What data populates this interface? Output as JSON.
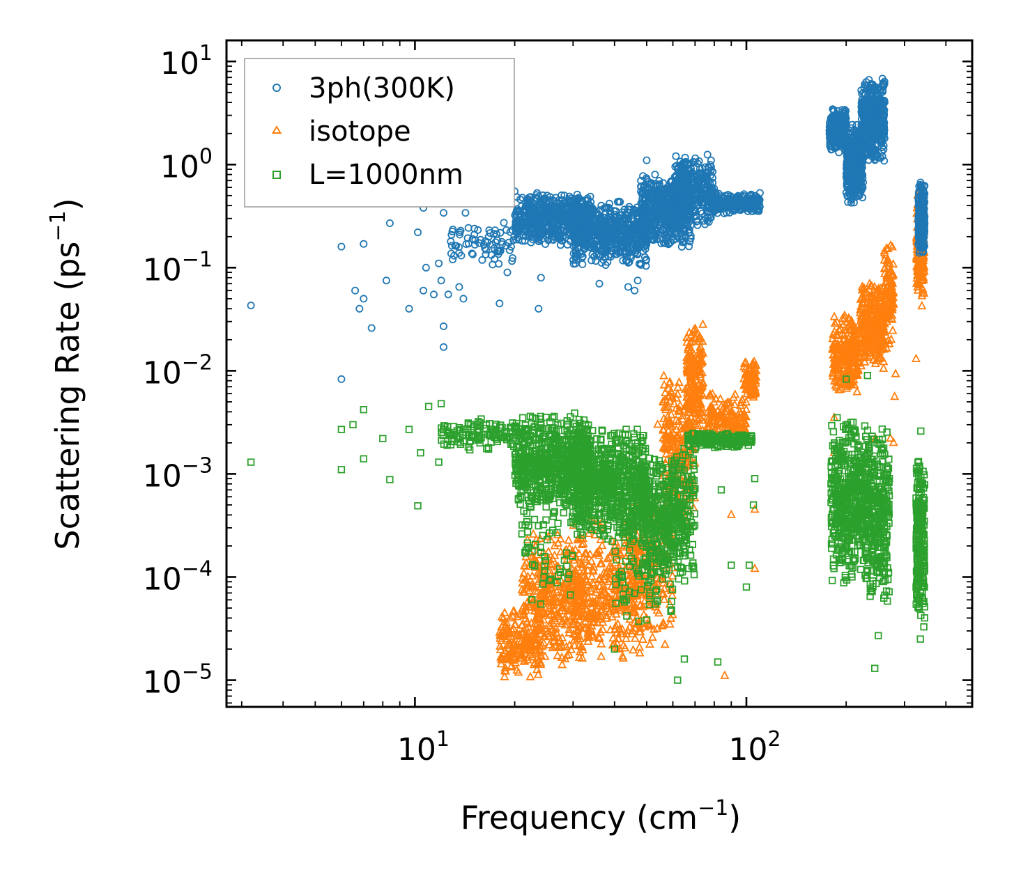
{
  "chart_data": {
    "type": "scatter",
    "title": "",
    "xlabel": "Frequency (cm",
    "xlabel_sup": "−1",
    "xlabel_suffix": ")",
    "ylabel": "Scattering Rate (ps",
    "ylabel_sup": "−1",
    "ylabel_suffix": ")",
    "xscale": "log",
    "yscale": "log",
    "xlim": [
      2.7,
      480
    ],
    "ylim": [
      5.5e-06,
      16
    ],
    "x_ticks": [
      {
        "value": 10,
        "base": "10",
        "exp": "1"
      },
      {
        "value": 100,
        "base": "10",
        "exp": "2"
      }
    ],
    "y_ticks": [
      {
        "value": 10,
        "base": "10",
        "exp": "1"
      },
      {
        "value": 1,
        "base": "10",
        "exp": "0"
      },
      {
        "value": 0.1,
        "base": "10",
        "exp": "−1"
      },
      {
        "value": 0.01,
        "base": "10",
        "exp": "−2"
      },
      {
        "value": 0.001,
        "base": "10",
        "exp": "−3"
      },
      {
        "value": 0.0001,
        "base": "10",
        "exp": "−4"
      },
      {
        "value": 1e-05,
        "base": "10",
        "exp": "−5"
      }
    ],
    "legend_position": "top-left",
    "series": [
      {
        "name": "3ph(300K)",
        "color": "#1f77b4",
        "marker": "circle",
        "points": [
          [
            3.2,
            0.043
          ],
          [
            6,
            0.16
          ],
          [
            6,
            0.0083
          ],
          [
            6.6,
            0.06
          ],
          [
            6.8,
            0.04
          ],
          [
            7,
            0.17
          ],
          [
            7,
            0.05
          ],
          [
            7.4,
            0.026
          ],
          [
            8.2,
            0.075
          ],
          [
            8.4,
            0.27
          ],
          [
            9.6,
            0.04
          ],
          [
            10.2,
            0.22
          ],
          [
            10.6,
            0.38
          ],
          [
            10.6,
            0.06
          ],
          [
            10.8,
            0.1
          ],
          [
            11.4,
            0.055
          ],
          [
            11.8,
            0.11
          ],
          [
            12,
            0.075
          ],
          [
            12.2,
            0.027
          ],
          [
            12.2,
            0.017
          ],
          [
            12.2,
            0.34
          ],
          [
            12.6,
            0.055
          ],
          [
            13,
            0.12
          ],
          [
            13.6,
            0.065
          ],
          [
            14,
            0.05
          ],
          [
            14.2,
            0.34
          ],
          [
            15,
            0.44
          ],
          [
            16.4,
            0.47
          ],
          [
            18,
            0.045
          ],
          [
            19,
            0.09
          ],
          [
            20,
            0.55
          ],
          [
            23.6,
            0.04
          ],
          [
            24,
            0.08
          ],
          [
            27,
            0.2
          ],
          [
            30,
            0.42
          ],
          [
            36,
            0.07
          ],
          [
            44,
            0.065
          ],
          [
            46,
            0.06
          ],
          [
            47,
            0.075
          ],
          [
            48,
            0.11
          ],
          [
            50,
            1.1
          ],
          [
            53,
            0.8
          ],
          [
            56,
            0.55
          ],
          [
            60,
            0.6
          ]
        ],
        "bands": [
          {
            "x": [
              12.8,
              20
            ],
            "y": [
              0.1,
              0.3
            ],
            "count": 70
          },
          {
            "x": [
              20,
              34
            ],
            "y": [
              0.16,
              0.55
            ],
            "count": 620
          },
          {
            "x": [
              30,
              50
            ],
            "y": [
              0.1,
              0.45
            ],
            "count": 600
          },
          {
            "x": [
              48,
              68
            ],
            "y": [
              0.15,
              0.9
            ],
            "count": 500
          },
          {
            "x": [
              60,
              80
            ],
            "y": [
              0.25,
              1.3
            ],
            "count": 320
          },
          {
            "x": [
              78,
              110
            ],
            "y": [
              0.32,
              0.55
            ],
            "count": 200
          },
          {
            "x": [
              178,
              200
            ],
            "y": [
              1.3,
              3.6
            ],
            "count": 260
          },
          {
            "x": [
              200,
              225
            ],
            "y": [
              0.4,
              2.6
            ],
            "count": 360
          },
          {
            "x": [
              222,
              262
            ],
            "y": [
              1.0,
              7.5
            ],
            "count": 470
          },
          {
            "x": [
              330,
              345
            ],
            "y": [
              0.12,
              0.75
            ],
            "count": 200
          }
        ]
      },
      {
        "name": "isotope",
        "color": "#ff7f0e",
        "marker": "triangle",
        "points": [
          [
            54,
            0.003
          ],
          [
            60,
            0.0025
          ],
          [
            62,
            0.0023
          ],
          [
            86,
            1.1e-05
          ],
          [
            90,
            0.0004
          ],
          [
            106,
            0.00045
          ],
          [
            106,
            0.00012
          ],
          [
            184,
            0.0035
          ],
          [
            184,
            0.0016
          ],
          [
            190,
            0.0065
          ],
          [
            245,
            0.0022
          ],
          [
            272,
            0.0022
          ],
          [
            278,
            0.002
          ],
          [
            280,
            0.0056
          ],
          [
            282,
            0.0093
          ],
          [
            325,
            0.013
          ],
          [
            330,
            0.07
          ]
        ],
        "bands": [
          {
            "x": [
              18,
              24
            ],
            "y": [
              1e-05,
              5e-05
            ],
            "count": 170
          },
          {
            "x": [
              21,
              32
            ],
            "y": [
              1.2e-05,
              0.0003
            ],
            "count": 360
          },
          {
            "x": [
              30,
              48
            ],
            "y": [
              1.2e-05,
              0.0004
            ],
            "count": 380
          },
          {
            "x": [
              45,
              60
            ],
            "y": [
              2e-05,
              0.0008
            ],
            "count": 200
          },
          {
            "x": [
              56,
              70
            ],
            "y": [
              0.0003,
              0.01
            ],
            "count": 240
          },
          {
            "x": [
              66,
              74
            ],
            "y": [
              0.002,
              0.032
            ],
            "count": 180
          },
          {
            "x": [
              76,
              100
            ],
            "y": [
              0.002,
              0.006
            ],
            "count": 150
          },
          {
            "x": [
              98,
              107
            ],
            "y": [
              0.005,
              0.013
            ],
            "count": 100
          },
          {
            "x": [
              182,
              218
            ],
            "y": [
              0.006,
              0.035
            ],
            "count": 260
          },
          {
            "x": [
              220,
              262
            ],
            "y": [
              0.01,
              0.075
            ],
            "count": 300
          },
          {
            "x": [
              260,
              278
            ],
            "y": [
              0.015,
              0.18
            ],
            "count": 110
          },
          {
            "x": [
              326,
              344
            ],
            "y": [
              0.04,
              0.6
            ],
            "count": 180
          }
        ]
      },
      {
        "name": "L=1000nm",
        "color": "#2ca02c",
        "marker": "square",
        "points": [
          [
            3.2,
            0.0013
          ],
          [
            6,
            0.0011
          ],
          [
            6,
            0.0027
          ],
          [
            6.5,
            0.003
          ],
          [
            7,
            0.0014
          ],
          [
            7,
            0.0042
          ],
          [
            8,
            0.0022
          ],
          [
            8.4,
            0.00088
          ],
          [
            9.6,
            0.0027
          ],
          [
            10.2,
            0.00049
          ],
          [
            10.4,
            0.0016
          ],
          [
            11,
            0.0045
          ],
          [
            11.8,
            0.0013
          ],
          [
            12,
            0.0048
          ],
          [
            24,
            0.003
          ],
          [
            40,
            2e-05
          ],
          [
            62,
            1e-05
          ],
          [
            65,
            1.6e-05
          ],
          [
            82,
            1.5e-05
          ],
          [
            84,
            0.0007
          ],
          [
            90,
            0.00013
          ],
          [
            100,
            8e-05
          ],
          [
            102,
            0.00013
          ],
          [
            105,
            0.0005
          ],
          [
            106,
            0.0009
          ],
          [
            180,
            0.0008
          ],
          [
            200,
            0.0083
          ],
          [
            232,
            0.009
          ],
          [
            244,
            1.3e-05
          ],
          [
            250,
            2.7e-05
          ],
          [
            270,
            0.0009
          ],
          [
            335,
            2.5e-05
          ],
          [
            336,
            0.0026
          ]
        ],
        "bands": [
          {
            "x": [
              12,
              22
            ],
            "y": [
              0.0016,
              0.0035
            ],
            "count": 130
          },
          {
            "x": [
              20,
              34
            ],
            "y": [
              0.0004,
              0.004
            ],
            "count": 700
          },
          {
            "x": [
              21,
              30
            ],
            "y": [
              4e-05,
              0.0008
            ],
            "count": 60
          },
          {
            "x": [
              30,
              50
            ],
            "y": [
              0.0002,
              0.003
            ],
            "count": 700
          },
          {
            "x": [
              40,
              60
            ],
            "y": [
              3e-05,
              0.0008
            ],
            "count": 90
          },
          {
            "x": [
              48,
              70
            ],
            "y": [
              8e-05,
              0.002
            ],
            "count": 450
          },
          {
            "x": [
              66,
              104
            ],
            "y": [
              0.0018,
              0.0026
            ],
            "count": 200
          },
          {
            "x": [
              180,
              232
            ],
            "y": [
              8e-05,
              0.004
            ],
            "count": 460
          },
          {
            "x": [
              230,
              270
            ],
            "y": [
              5e-05,
              0.003
            ],
            "count": 300
          },
          {
            "x": [
              325,
              345
            ],
            "y": [
              3e-05,
              0.0015
            ],
            "count": 220
          }
        ]
      }
    ]
  }
}
